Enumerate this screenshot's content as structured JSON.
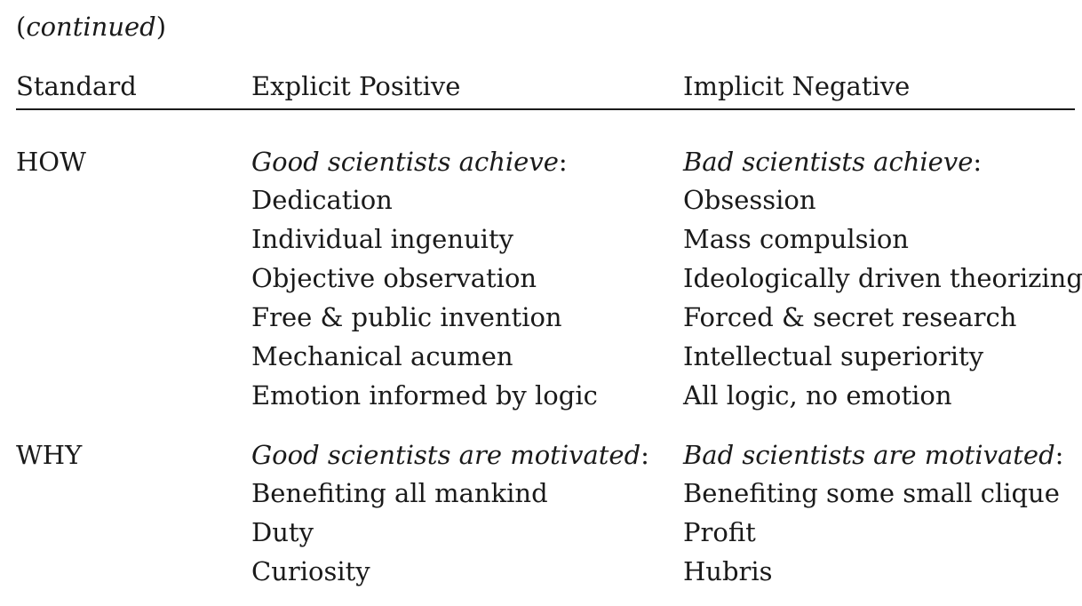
{
  "continued": {
    "open_paren": "(",
    "word": "continued",
    "close_paren": ")"
  },
  "table": {
    "headers": {
      "standard": "Standard",
      "explicit_positive": "Explicit Positive",
      "implicit_negative": "Implicit Negative"
    },
    "sections": [
      {
        "standard": "HOW",
        "positive_intro": "Good scientists achieve",
        "negative_intro": "Bad scientists achieve",
        "intro_suffix": ":",
        "rows": [
          {
            "positive": "Dedication",
            "negative": "Obsession"
          },
          {
            "positive": "Individual ingenuity",
            "negative": "Mass compulsion"
          },
          {
            "positive": "Objective observation",
            "negative": "Ideologically driven theorizing"
          },
          {
            "positive": "Free & public invention",
            "negative": "Forced & secret research"
          },
          {
            "positive": "Mechanical acumen",
            "negative": "Intellectual superiority"
          },
          {
            "positive": "Emotion informed by logic",
            "negative": "All logic, no emotion"
          }
        ]
      },
      {
        "standard": "WHY",
        "positive_intro": "Good scientists are motivated",
        "negative_intro": "Bad scientists are motivated",
        "intro_suffix": ":",
        "rows": [
          {
            "positive": "Benefiting all mankind",
            "negative": "Benefiting some small clique"
          },
          {
            "positive": "Duty",
            "negative": "Profit"
          },
          {
            "positive": "Curiosity",
            "negative": "Hubris"
          }
        ]
      }
    ]
  }
}
